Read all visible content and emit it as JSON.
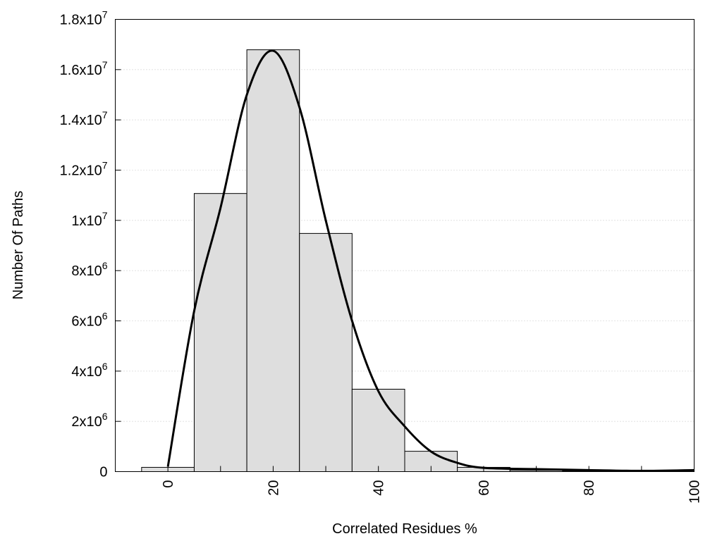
{
  "chart_data": {
    "type": "bar",
    "title": "",
    "xlabel": "Correlated Residues %",
    "ylabel": "Number Of Paths",
    "xlim": [
      -10,
      100
    ],
    "ylim": [
      0,
      18000000
    ],
    "x_ticks": [
      0,
      20,
      40,
      60,
      80,
      100
    ],
    "x_minor_ticks": [
      10,
      30,
      50,
      70,
      90
    ],
    "y_ticks": [
      {
        "value": 0,
        "base": "0",
        "exp": ""
      },
      {
        "value": 2000000,
        "base": "2x10",
        "exp": "6"
      },
      {
        "value": 4000000,
        "base": "4x10",
        "exp": "6"
      },
      {
        "value": 6000000,
        "base": "6x10",
        "exp": "6"
      },
      {
        "value": 8000000,
        "base": "8x10",
        "exp": "6"
      },
      {
        "value": 10000000,
        "base": "1x10",
        "exp": "7"
      },
      {
        "value": 12000000,
        "base": "1.2x10",
        "exp": "7"
      },
      {
        "value": 14000000,
        "base": "1.4x10",
        "exp": "7"
      },
      {
        "value": 16000000,
        "base": "1.6x10",
        "exp": "7"
      },
      {
        "value": 18000000,
        "base": "1.8x10",
        "exp": "7"
      }
    ],
    "grid": "horizontal dotted",
    "bin_width": 10,
    "bars": {
      "centers": [
        0,
        10,
        20,
        30,
        40,
        50,
        60,
        70,
        80,
        90
      ],
      "values": [
        170000,
        11070000,
        16790000,
        9480000,
        3280000,
        810000,
        170000,
        50000,
        30000,
        20000
      ],
      "color": "#dedede"
    },
    "curve": {
      "x": [
        0,
        5,
        10,
        15,
        20,
        25,
        30,
        35,
        40,
        45,
        50,
        55,
        60,
        70,
        80,
        90,
        100
      ],
      "y": [
        200000,
        6400000,
        10500000,
        15000000,
        16750000,
        14500000,
        10000000,
        6000000,
        3200000,
        1800000,
        800000,
        350000,
        150000,
        100000,
        60000,
        30000,
        60000
      ],
      "color": "#000000"
    }
  }
}
